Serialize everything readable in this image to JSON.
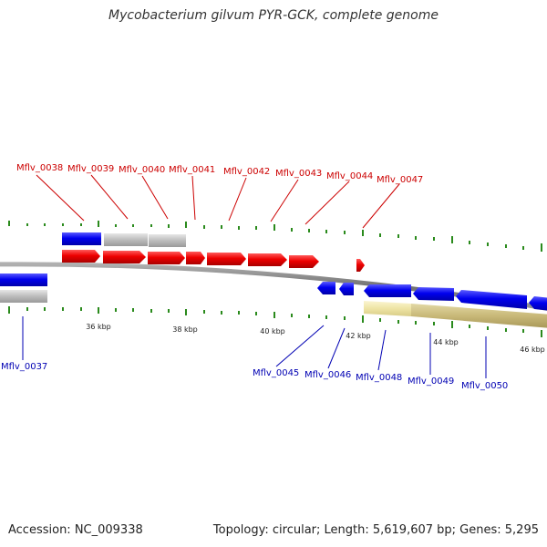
{
  "title": "Mycobacterium gilvum PYR-GCK, complete genome",
  "footer": {
    "accession": "Accession: NC_009338",
    "summary": "Topology: circular; Length: 5,619,607 bp; Genes: 5,295"
  },
  "colors": {
    "forward_label": "#cc0000",
    "reverse_label": "#0000b3",
    "forward_gene": "#ee0000",
    "reverse_gene": "#0000ee",
    "gray_feature": "#b8b8b8",
    "olive_feature": "#c8b878",
    "pale_feature": "#eee4a4",
    "backbone": "#888888",
    "tick": "#2a8a1c"
  },
  "labels": {
    "forward": [
      "Mflv_0038",
      "Mflv_0039",
      "Mflv_0040",
      "Mflv_0041",
      "Mflv_0042",
      "Mflv_0043",
      "Mflv_0044",
      "Mflv_0047"
    ],
    "reverse": [
      "Mflv_0037",
      "Mflv_0045",
      "Mflv_0046",
      "Mflv_0048",
      "Mflv_0049",
      "Mflv_0050"
    ]
  },
  "scale": [
    "36 kbp",
    "38 kbp",
    "40 kbp",
    "42 kbp",
    "44 kbp",
    "46 kbp"
  ]
}
